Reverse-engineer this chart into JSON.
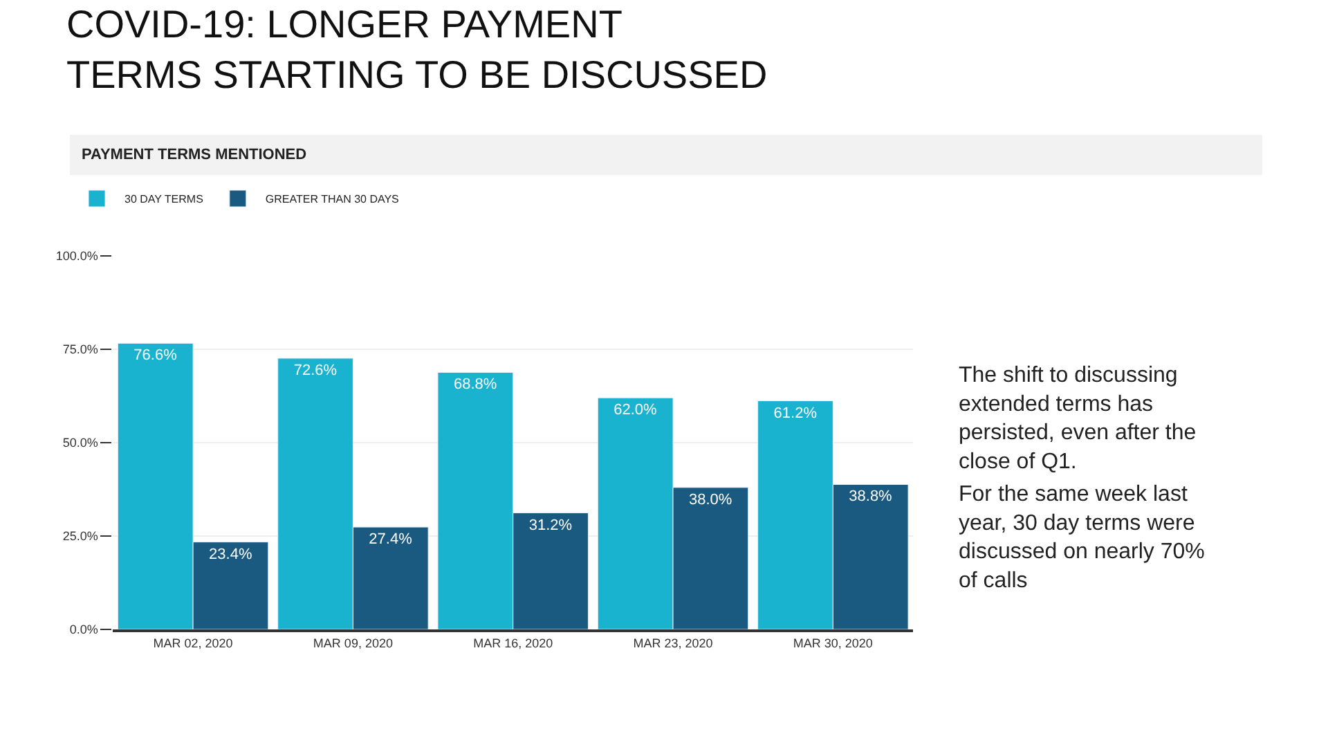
{
  "chart_data": {
    "type": "bar",
    "title": "COVID-19: LONGER PAYMENT\nTERMS STARTING TO BE DISCUSSED",
    "subtitle": "PAYMENT TERMS MENTIONED",
    "categories": [
      "MAR 02, 2020",
      "MAR 09, 2020",
      "MAR 16, 2020",
      "MAR 23, 2020",
      "MAR 30, 2020"
    ],
    "series": [
      {
        "name": "30 DAY TERMS",
        "color": "#1ab3cf",
        "values": [
          76.6,
          72.6,
          68.8,
          62.0,
          61.2
        ],
        "value_labels": [
          "76.6%",
          "72.6%",
          "68.8%",
          "62.0%",
          "61.2%"
        ]
      },
      {
        "name": "GREATER THAN 30 DAYS",
        "color": "#1b5a80",
        "values": [
          23.4,
          27.4,
          31.2,
          38.0,
          38.8
        ],
        "value_labels": [
          "23.4%",
          "27.4%",
          "31.2%",
          "38.0%",
          "38.8%"
        ]
      }
    ],
    "ylim": [
      0,
      100
    ],
    "yticks": [
      {
        "value": 0,
        "label": "0.0%"
      },
      {
        "value": 25,
        "label": "25.0%"
      },
      {
        "value": 50,
        "label": "50.0%"
      },
      {
        "value": 75,
        "label": "75.0%"
      },
      {
        "value": 100,
        "label": "100.0%"
      }
    ],
    "grid": "y",
    "legend": "top left",
    "annotations": [
      "The shift to discussing\nextended terms has\npersisted, even after the\nclose of Q1.",
      "For the same week last\nyear, 30 day terms were\ndiscussed on nearly 70%\nof calls"
    ]
  }
}
